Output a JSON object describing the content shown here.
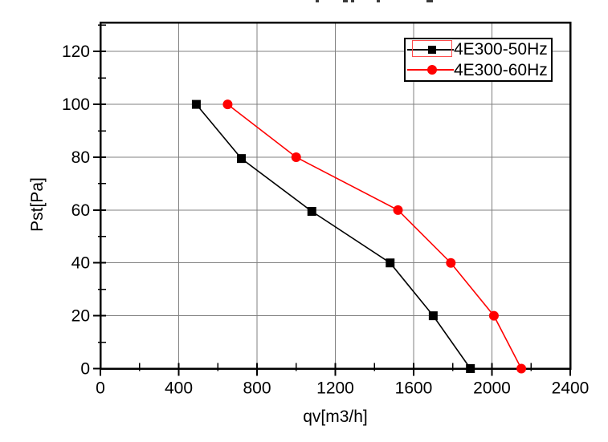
{
  "chart_data": {
    "type": "line",
    "title": "",
    "xlabel": "qv[m3/h]",
    "ylabel": "Pst[Pa]",
    "xlim": [
      0,
      2400
    ],
    "ylim": [
      0,
      131
    ],
    "xticks_major": [
      0,
      400,
      800,
      1200,
      1600,
      2000,
      2400
    ],
    "xticks_minor": [
      200,
      600,
      1000,
      1400,
      1800,
      2200
    ],
    "yticks_major": [
      0,
      20,
      40,
      60,
      80,
      100,
      120
    ],
    "yticks_minor": [
      10,
      30,
      50,
      70,
      90,
      110,
      130
    ],
    "grid": {
      "x_values": [
        400,
        800,
        1200,
        1600,
        2000
      ],
      "y_values": [
        20,
        40,
        60,
        80,
        100,
        120
      ],
      "color": "#808080"
    },
    "frame_color": "#000000",
    "series": [
      {
        "name": "4E300-50Hz",
        "color": "#000000",
        "marker": "square",
        "points": [
          [
            490,
            100
          ],
          [
            720,
            79.5
          ],
          [
            1080,
            59.5
          ],
          [
            1480,
            40
          ],
          [
            1700,
            20
          ],
          [
            1890,
            0
          ]
        ],
        "legend_selected": true
      },
      {
        "name": "4E300-60Hz",
        "color": "#ff0000",
        "marker": "circle",
        "points": [
          [
            650,
            100
          ],
          [
            1000,
            80
          ],
          [
            1520,
            60
          ],
          [
            1790,
            40
          ],
          [
            2010,
            20
          ],
          [
            2150,
            0
          ]
        ],
        "legend_selected": false
      }
    ],
    "legend": {
      "position": "top-right",
      "border_color": "#000000",
      "selection_color": "#ff4d4d"
    }
  }
}
